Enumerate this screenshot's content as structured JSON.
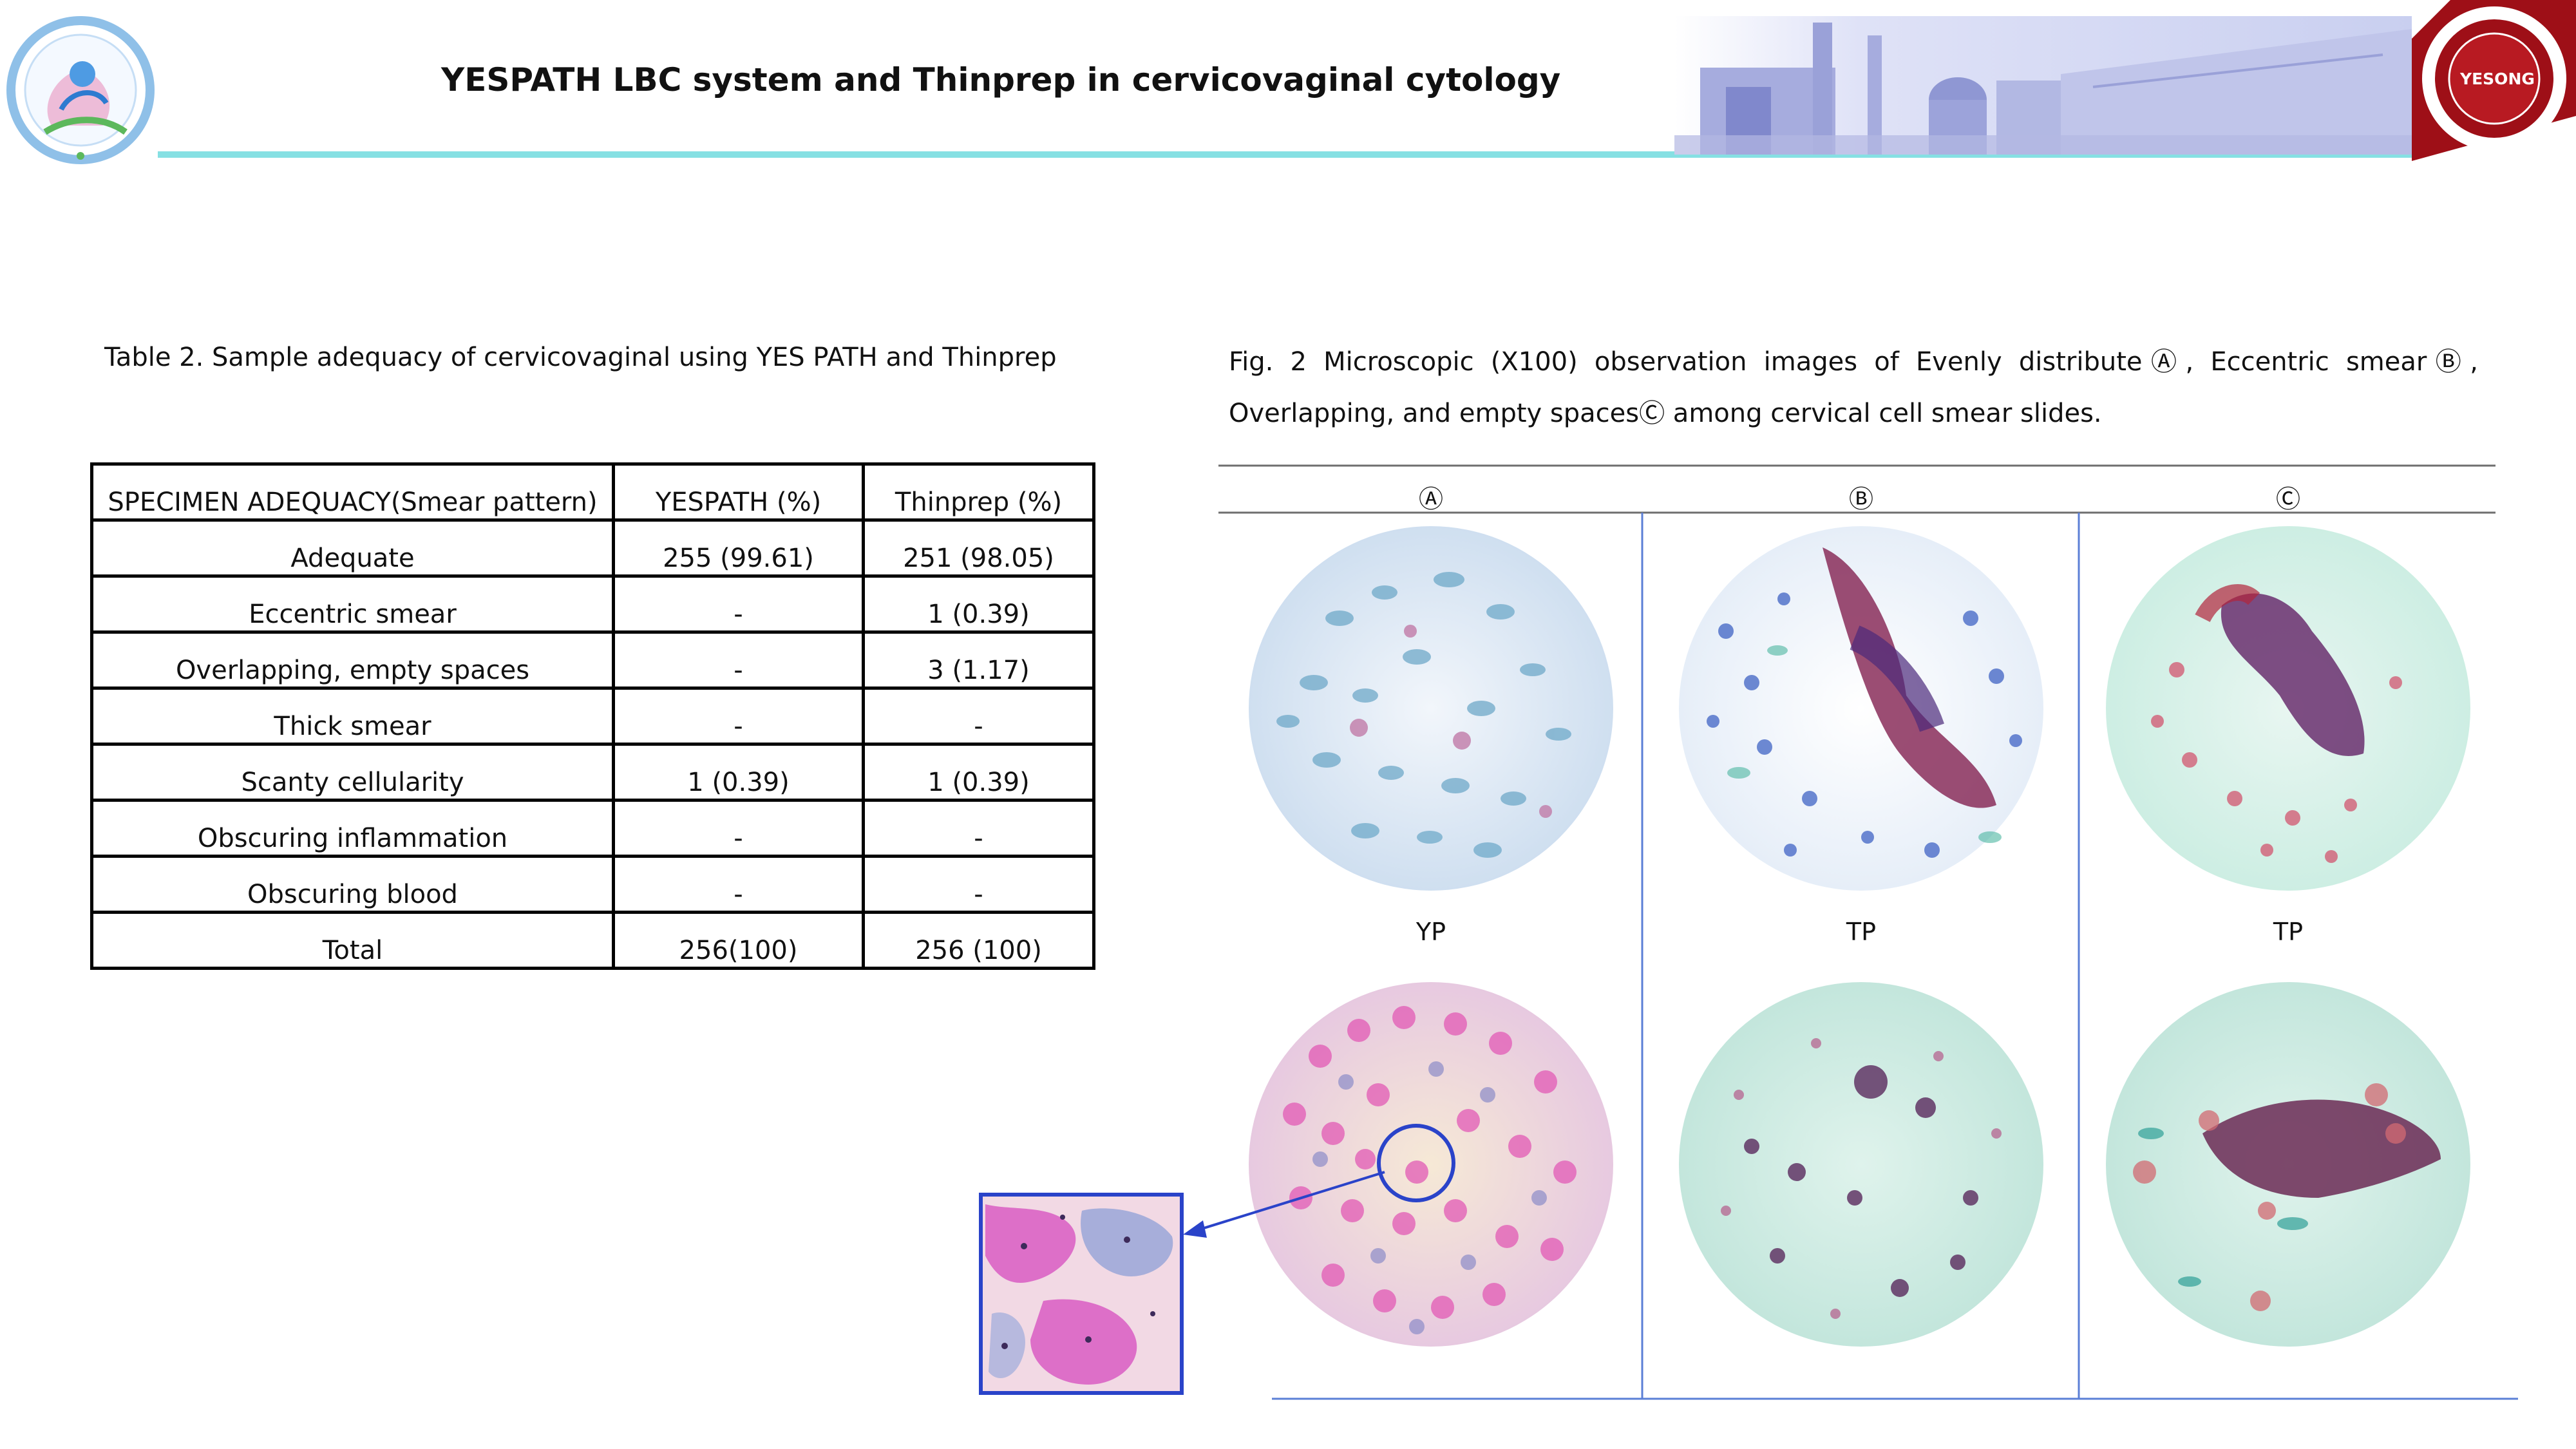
{
  "header": {
    "title": "YESPATH LBC system and Thinprep in cervicovaginal cytology",
    "logo_right_text": "YESONG"
  },
  "table": {
    "caption": "Table 2. Sample adequacy of cervicovaginal using YES PATH and Thinprep",
    "columns": [
      "SPECIMEN ADEQUACY(Smear pattern)",
      "YESPATH (%)",
      "Thinprep (%)"
    ],
    "rows": [
      [
        "Adequate",
        "255 (99.61)",
        "251 (98.05)"
      ],
      [
        "Eccentric smear",
        "-",
        "1 (0.39)"
      ],
      [
        "Overlapping, empty spaces",
        "-",
        "3 (1.17)"
      ],
      [
        "Thick smear",
        "-",
        "-"
      ],
      [
        "Scanty cellularity",
        "1 (0.39)",
        "1 (0.39)"
      ],
      [
        "Obscuring inflammation",
        "-",
        "-"
      ],
      [
        "Obscuring blood",
        "-",
        "-"
      ],
      [
        "Total",
        "256(100)",
        "256 (100)"
      ]
    ]
  },
  "figure": {
    "caption": "Fig. 2 Microscopic (X100) observation images of Evenly distributeⒶ, Eccentric smearⒷ, Overlapping, and empty spacesⒸ among cervical cell smear slides.",
    "column_labels": [
      "Ⓐ",
      "Ⓑ",
      "Ⓒ"
    ],
    "row_labels": [
      "YP",
      "TP",
      "TP"
    ]
  },
  "colors": {
    "accent_line": "#86e0e3",
    "figure_divider": "#5b7fd6",
    "arrow": "#2a43c9",
    "logo_red": "#9e0f17"
  }
}
